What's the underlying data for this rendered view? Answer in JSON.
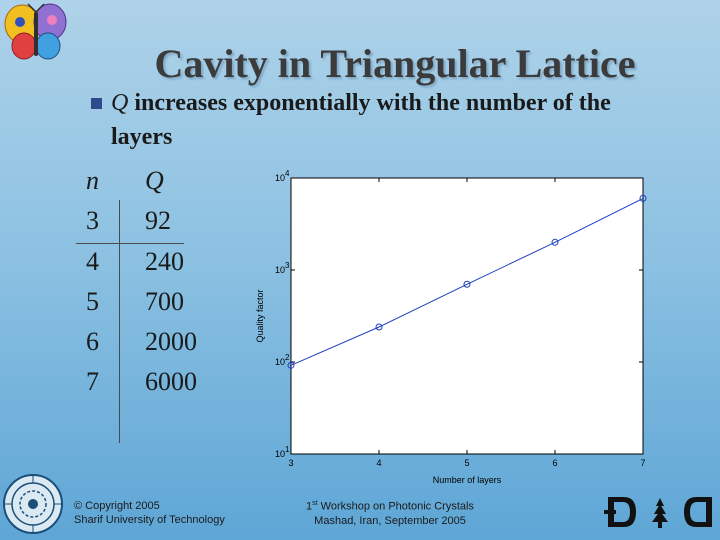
{
  "slide": {
    "title": "Cavity in Triangular Lattice",
    "bullet": {
      "q_symbol": "Q",
      "text": "increases exponentially with the number of the",
      "continuation": "layers"
    },
    "table": {
      "headers": [
        "n",
        "Q"
      ],
      "rows": [
        [
          "3",
          "92"
        ],
        [
          "4",
          "240"
        ],
        [
          "5",
          "700"
        ],
        [
          "6",
          "2000"
        ],
        [
          "7",
          "6000"
        ]
      ]
    },
    "footer": {
      "copyright_line1": "© Copyright 2005",
      "copyright_line2": "Sharif University of Technology",
      "workshop_line1_sup": "st",
      "workshop_line1_num": "1",
      "workshop_line1_rest": " Workshop on Photonic Crystals",
      "workshop_line2": "Mashad, Iran, September 2005"
    }
  },
  "colors": {
    "title": "#3b3b3b",
    "bullet": "#2c4a8c",
    "line": "#1f3fbf",
    "marker": "#1f3fbf"
  },
  "icons": [
    "butterfly-logo-icon",
    "university-seal-icon",
    "dnd-logo-icon"
  ],
  "chart_data": {
    "type": "line",
    "scale": "log-y",
    "x": [
      3,
      4,
      5,
      6,
      7
    ],
    "series": [
      {
        "name": "Quality factor",
        "values": [
          92,
          240,
          700,
          2000,
          6000
        ],
        "marker": "circle"
      }
    ],
    "xlabel": "Number of layers",
    "ylabel": "Quality factor",
    "xlim": [
      3,
      7
    ],
    "ylim": [
      10,
      10000
    ],
    "x_ticks": [
      "3",
      "4",
      "5",
      "6",
      "7"
    ],
    "y_ticks": [
      {
        "base": "10",
        "exp": "1",
        "value": 10
      },
      {
        "base": "10",
        "exp": "2",
        "value": 100
      },
      {
        "base": "10",
        "exp": "3",
        "value": 1000
      },
      {
        "base": "10",
        "exp": "4",
        "value": 10000
      }
    ],
    "grid": false
  }
}
